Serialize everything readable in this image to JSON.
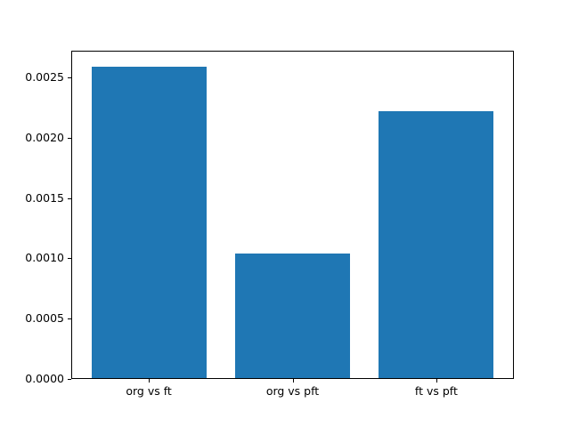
{
  "chart_data": {
    "type": "bar",
    "categories": [
      "org vs ft",
      "org vs pft",
      "ft vs pft"
    ],
    "values": [
      0.00259,
      0.00104,
      0.00222
    ],
    "title": "",
    "xlabel": "",
    "ylabel": "",
    "ylim": [
      0,
      0.00272
    ],
    "yticks": [
      0.0,
      0.0005,
      0.001,
      0.0015,
      0.002,
      0.0025
    ],
    "ytick_labels": [
      "0.0000",
      "0.0005",
      "0.0010",
      "0.0015",
      "0.0020",
      "0.0025"
    ],
    "bar_color": "#1f77b4",
    "grid": false,
    "legend": null
  }
}
